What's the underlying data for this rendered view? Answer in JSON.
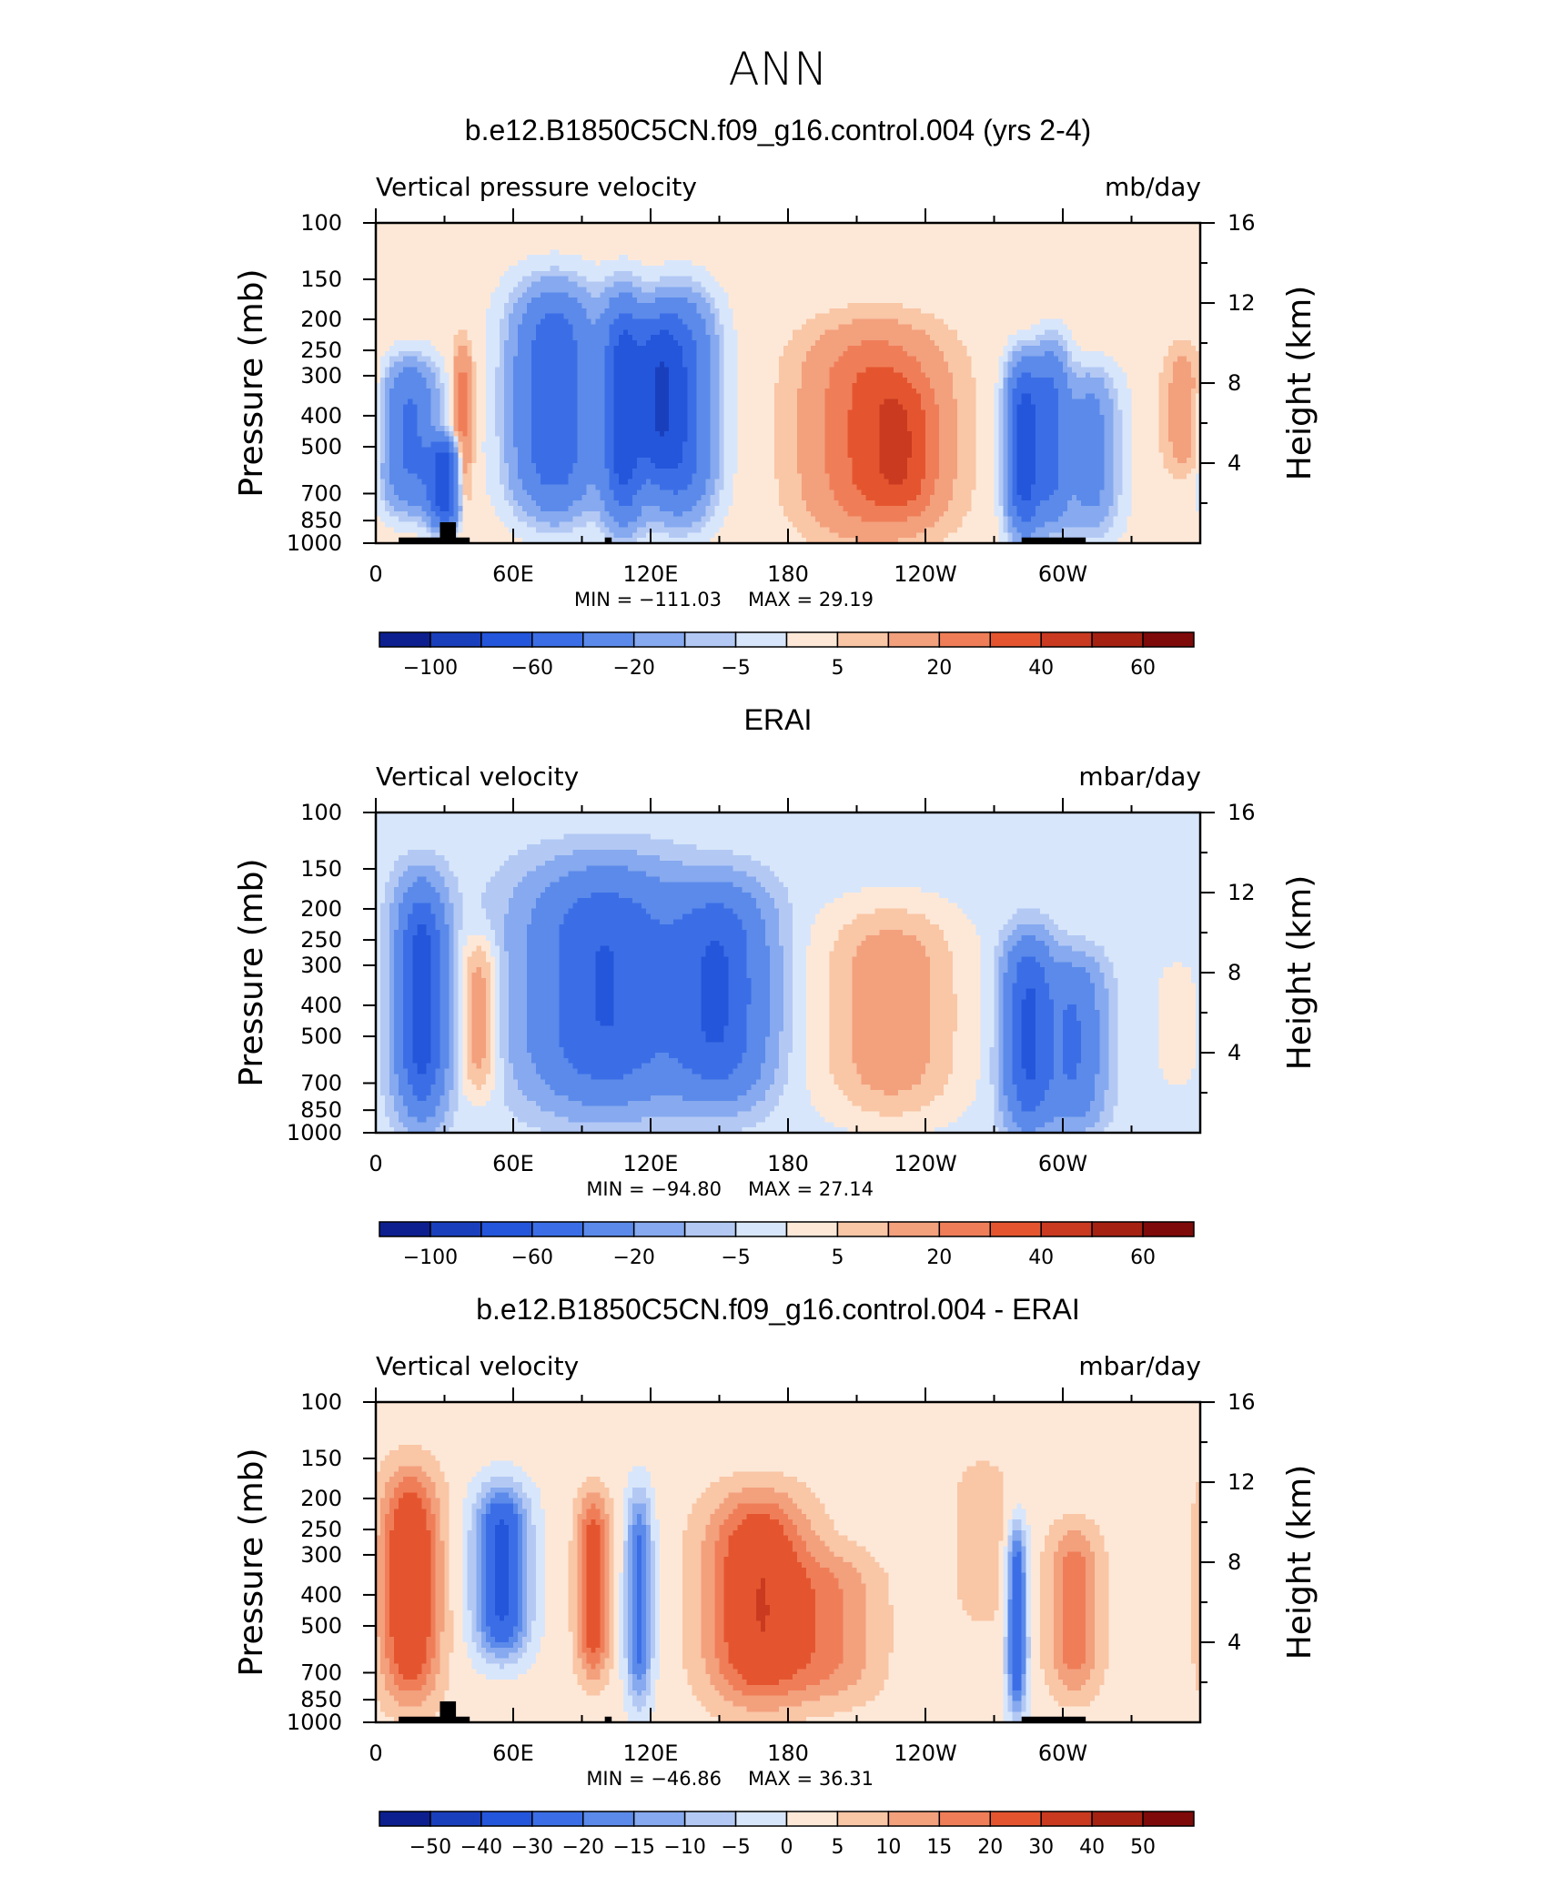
{
  "figure": {
    "title": "ANN"
  },
  "colorbar_palette": [
    "#0d1f8f",
    "#1a3fbd",
    "#2456db",
    "#3b6ee6",
    "#5b8aea",
    "#86a9ef",
    "#b3c9f4",
    "#d8e6fb",
    "#fde8d7",
    "#f9c6a6",
    "#f3a07d",
    "#ef7e58",
    "#e4552f",
    "#c93a20",
    "#a52112",
    "#7f0a0a"
  ],
  "chart_data": [
    {
      "type": "heatmap",
      "title": "b.e12.B1850C5CN.f09_g16.control.004 (yrs 2-4)",
      "left_label": "Vertical pressure velocity",
      "units": "mb/day",
      "ylabel": "Pressure (mb)",
      "y2label": "Height (km)",
      "x_ticks": [
        "0",
        "60E",
        "120E",
        "180",
        "120W",
        "60W"
      ],
      "y_ticks": [
        "100",
        "150",
        "200",
        "250",
        "300",
        "400",
        "500",
        "700",
        "850",
        "1000"
      ],
      "y2_ticks": [
        "16",
        "12",
        "8",
        "4"
      ],
      "min_text": "MIN = −111.03",
      "max_text": "MAX =   29.19",
      "min": -111.03,
      "max": 29.19,
      "colorbar_labels": [
        "−100",
        "−60",
        "−20",
        "−5",
        "5",
        "20",
        "40",
        "60"
      ],
      "blobs": [
        {
          "lon": 15,
          "lo": 280,
          "hi": 760,
          "wlon": 8,
          "amp": -45
        },
        {
          "lon": 30,
          "lo": 480,
          "hi": 880,
          "wlon": 5,
          "amp": -70
        },
        {
          "lon": 38,
          "lo": 250,
          "hi": 800,
          "wlon": 3,
          "amp": 25
        },
        {
          "lon": 78,
          "lo": 170,
          "hi": 760,
          "wlon": 12,
          "amp": -62
        },
        {
          "lon": 108,
          "lo": 180,
          "hi": 820,
          "wlon": 6,
          "amp": -70
        },
        {
          "lon": 132,
          "lo": 180,
          "hi": 780,
          "wlon": 10,
          "amp": -62
        },
        {
          "lon": 122,
          "lo": 200,
          "hi": 600,
          "wlon": 6,
          "amp": -40
        },
        {
          "lon": 218,
          "lo": 220,
          "hi": 900,
          "wlon": 20,
          "amp": 32
        },
        {
          "lon": 232,
          "lo": 320,
          "hi": 800,
          "wlon": 10,
          "amp": 14
        },
        {
          "lon": 283,
          "lo": 280,
          "hi": 900,
          "wlon": 5,
          "amp": -72
        },
        {
          "lon": 295,
          "lo": 250,
          "hi": 850,
          "wlon": 5,
          "amp": -45
        },
        {
          "lon": 312,
          "lo": 300,
          "hi": 900,
          "wlon": 8,
          "amp": -28
        },
        {
          "lon": 353,
          "lo": 250,
          "hi": 600,
          "wlon": 6,
          "amp": 14
        }
      ],
      "base_value": 2,
      "land_boxes": [
        {
          "lon0": 10,
          "lon1": 41,
          "level": 1000
        },
        {
          "lon0": 28,
          "lon1": 35,
          "level": 860
        },
        {
          "lon0": 100,
          "lon1": 103,
          "level": 960
        },
        {
          "lon0": 282,
          "lon1": 310,
          "level": 1000
        }
      ]
    },
    {
      "type": "heatmap",
      "title": "ERAI",
      "left_label": "Vertical velocity",
      "units": "mbar/day",
      "ylabel": "Pressure (mb)",
      "y2label": "Height (km)",
      "x_ticks": [
        "0",
        "60E",
        "120E",
        "180",
        "120W",
        "60W"
      ],
      "y_ticks": [
        "100",
        "150",
        "200",
        "250",
        "300",
        "400",
        "500",
        "700",
        "850",
        "1000"
      ],
      "y2_ticks": [
        "16",
        "12",
        "8",
        "4"
      ],
      "min_text": "MIN = −94.80",
      "max_text": "MAX =   27.14",
      "min": -94.8,
      "max": 27.14,
      "colorbar_labels": [
        "−100",
        "−60",
        "−20",
        "−5",
        "5",
        "20",
        "40",
        "60"
      ],
      "blobs": [
        {
          "lon": 20,
          "lo": 180,
          "hi": 820,
          "wlon": 7,
          "amp": -70
        },
        {
          "lon": 45,
          "lo": 250,
          "hi": 750,
          "wlon": 6,
          "amp": 18
        },
        {
          "lon": 100,
          "lo": 160,
          "hi": 760,
          "wlon": 22,
          "amp": -58
        },
        {
          "lon": 150,
          "lo": 180,
          "hi": 740,
          "wlon": 14,
          "amp": -56
        },
        {
          "lon": 225,
          "lo": 200,
          "hi": 880,
          "wlon": 22,
          "amp": 18
        },
        {
          "lon": 285,
          "lo": 260,
          "hi": 920,
          "wlon": 7,
          "amp": -60
        },
        {
          "lon": 305,
          "lo": 300,
          "hi": 900,
          "wlon": 8,
          "amp": -38
        },
        {
          "lon": 350,
          "lo": 300,
          "hi": 700,
          "wlon": 6,
          "amp": 8
        }
      ],
      "base_value": -3,
      "land_boxes": []
    },
    {
      "type": "heatmap",
      "title": "b.e12.B1850C5CN.f09_g16.control.004 - ERAI",
      "left_label": "Vertical velocity",
      "units": "mbar/day",
      "ylabel": "Pressure (mb)",
      "y2label": "Height (km)",
      "x_ticks": [
        "0",
        "60E",
        "120E",
        "180",
        "120W",
        "60W"
      ],
      "y_ticks": [
        "100",
        "150",
        "200",
        "250",
        "300",
        "400",
        "500",
        "700",
        "850",
        "1000"
      ],
      "y2_ticks": [
        "16",
        "12",
        "8",
        "4"
      ],
      "min_text": "MIN = −46.86",
      "max_text": "MAX =   36.31",
      "min": -46.86,
      "max": 36.31,
      "colorbar_labels": [
        "−50",
        "−40",
        "−30",
        "−20",
        "−15",
        "−10",
        "−5",
        "0",
        "5",
        "10",
        "15",
        "20",
        "30",
        "40",
        "50"
      ],
      "blobs": [
        {
          "lon": 15,
          "lo": 170,
          "hi": 820,
          "wlon": 9,
          "amp": 28
        },
        {
          "lon": 55,
          "lo": 190,
          "hi": 600,
          "wlon": 8,
          "amp": -36
        },
        {
          "lon": 95,
          "lo": 200,
          "hi": 700,
          "wlon": 5,
          "amp": 24
        },
        {
          "lon": 115,
          "lo": 200,
          "hi": 850,
          "wlon": 4,
          "amp": -25
        },
        {
          "lon": 167,
          "lo": 200,
          "hi": 850,
          "wlon": 16,
          "amp": 27
        },
        {
          "lon": 200,
          "lo": 300,
          "hi": 850,
          "wlon": 15,
          "amp": 12
        },
        {
          "lon": 280,
          "lo": 250,
          "hi": 900,
          "wlon": 3,
          "amp": -32
        },
        {
          "lon": 305,
          "lo": 250,
          "hi": 800,
          "wlon": 8,
          "amp": 17
        },
        {
          "lon": 265,
          "lo": 150,
          "hi": 500,
          "wlon": 10,
          "amp": 6
        }
      ],
      "base_value": 2,
      "land_boxes": [
        {
          "lon0": 10,
          "lon1": 41,
          "level": 1000
        },
        {
          "lon0": 28,
          "lon1": 35,
          "level": 860
        },
        {
          "lon0": 100,
          "lon1": 103,
          "level": 960
        },
        {
          "lon0": 282,
          "lon1": 310,
          "level": 1000
        }
      ]
    }
  ]
}
